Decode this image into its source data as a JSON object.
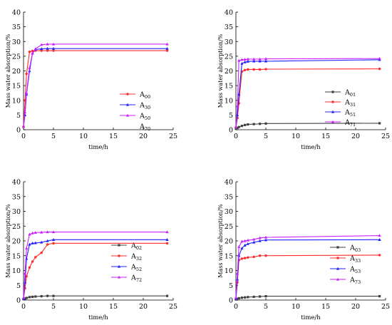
{
  "chart_data": [
    {
      "type": "line",
      "xlabel": "time/h",
      "ylabel": "Mass water absorption/%",
      "xlim": [
        0,
        25
      ],
      "ylim": [
        0,
        40
      ],
      "xticks": [
        "0",
        "5",
        "10",
        "15",
        "20",
        "25"
      ],
      "yticks": [
        "0",
        "5",
        "10",
        "15",
        "20",
        "25",
        "30",
        "35",
        "40"
      ],
      "legend_position": "right",
      "series": [
        {
          "name": "A00",
          "label_main": "A",
          "label_sub": "00",
          "color": "#ff2a2a",
          "marker": "circle",
          "x": [
            0,
            0.25,
            0.5,
            1,
            1.5,
            2,
            3,
            4,
            5,
            24
          ],
          "y": [
            1.0,
            10.0,
            19.0,
            26.5,
            26.8,
            26.9,
            26.9,
            26.9,
            26.9,
            26.9
          ]
        },
        {
          "name": "A30",
          "label_main": "A",
          "label_sub": "30",
          "color": "#2020ff",
          "marker": "triangle",
          "x": [
            0,
            0.25,
            0.5,
            1,
            1.5,
            2,
            3,
            4,
            5,
            24
          ],
          "y": [
            1.0,
            5.0,
            12.0,
            20.0,
            26.0,
            27.3,
            27.5,
            27.6,
            27.6,
            27.6
          ]
        },
        {
          "name": "A50",
          "label_main": "A",
          "label_sub": "50",
          "color": "#cc22ff",
          "marker": "triangle",
          "x": [
            0,
            0.25,
            0.5,
            1,
            1.5,
            2,
            3,
            4,
            5,
            24
          ],
          "y": [
            1.0,
            6.0,
            12.5,
            21.0,
            26.0,
            27.5,
            28.9,
            29.1,
            29.1,
            29.1
          ]
        },
        {
          "name": "A70",
          "label_main": "A",
          "label_sub": "70",
          "color": "#cc22ff",
          "marker": "none",
          "x": [],
          "y": []
        }
      ]
    },
    {
      "type": "line",
      "xlabel": "time/h",
      "ylabel": "Mass water absorption/%",
      "xlim": [
        0,
        25
      ],
      "ylim": [
        0,
        40
      ],
      "xticks": [
        "0",
        "5",
        "10",
        "15",
        "20",
        "25"
      ],
      "yticks": [
        "0",
        "5",
        "10",
        "15",
        "20",
        "25",
        "30",
        "35",
        "40"
      ],
      "legend_position": "right",
      "series": [
        {
          "name": "A01",
          "label_main": "A",
          "label_sub": "01",
          "color": "#404040",
          "marker": "square",
          "x": [
            0,
            0.25,
            0.5,
            1,
            1.5,
            2,
            3,
            4,
            5,
            24
          ],
          "y": [
            0.3,
            0.6,
            0.9,
            1.3,
            1.6,
            1.8,
            1.9,
            2.0,
            2.1,
            2.2
          ]
        },
        {
          "name": "A31",
          "label_main": "A",
          "label_sub": "31",
          "color": "#ff2a2a",
          "marker": "circle",
          "x": [
            0,
            0.25,
            0.5,
            1,
            1.5,
            2,
            3,
            4,
            5,
            24
          ],
          "y": [
            0.8,
            4.0,
            9.0,
            19.8,
            20.3,
            20.5,
            20.5,
            20.5,
            20.6,
            20.7
          ]
        },
        {
          "name": "A51",
          "label_main": "A",
          "label_sub": "51",
          "color": "#2020ff",
          "marker": "triangle",
          "x": [
            0,
            0.25,
            0.5,
            1,
            1.5,
            2,
            3,
            4,
            5,
            24
          ],
          "y": [
            0.8,
            5.0,
            12.0,
            22.5,
            23.0,
            23.2,
            23.3,
            23.3,
            23.3,
            23.8
          ]
        },
        {
          "name": "A71",
          "label_main": "A",
          "label_sub": "71",
          "color": "#cc22ff",
          "marker": "triangle",
          "x": [
            0,
            0.25,
            0.5,
            1,
            1.5,
            2,
            3,
            4,
            5,
            24
          ],
          "y": [
            0.8,
            8.0,
            23.5,
            23.8,
            23.9,
            24.0,
            24.0,
            24.0,
            24.1,
            24.2
          ]
        }
      ]
    },
    {
      "type": "line",
      "xlabel": "time/h",
      "ylabel": "Mass water absorption/%",
      "xlim": [
        0,
        25
      ],
      "ylim": [
        0,
        40
      ],
      "xticks": [
        "0",
        "5",
        "10",
        "15",
        "20",
        "25"
      ],
      "yticks": [
        "0",
        "5",
        "10",
        "15",
        "20",
        "25",
        "30",
        "35",
        "40"
      ],
      "legend_position": "right",
      "series": [
        {
          "name": "A02",
          "label_main": "A",
          "label_sub": "02",
          "color": "#404040",
          "marker": "square",
          "x": [
            0,
            0.25,
            0.5,
            1,
            1.5,
            2,
            3,
            4,
            5,
            24
          ],
          "y": [
            0.3,
            0.5,
            0.7,
            1.0,
            1.1,
            1.2,
            1.3,
            1.4,
            1.4,
            1.4
          ]
        },
        {
          "name": "A32",
          "label_main": "A",
          "label_sub": "32",
          "color": "#ff2a2a",
          "marker": "circle",
          "x": [
            0,
            0.25,
            0.5,
            1,
            1.5,
            2,
            3,
            4,
            5,
            24
          ],
          "y": [
            0.5,
            4.0,
            8.0,
            11.0,
            13.0,
            14.5,
            16.0,
            18.8,
            19.2,
            19.2
          ]
        },
        {
          "name": "A52",
          "label_main": "A",
          "label_sub": "52",
          "color": "#2020ff",
          "marker": "triangle",
          "x": [
            0,
            0.25,
            0.5,
            1,
            1.5,
            2,
            3,
            4,
            5,
            24
          ],
          "y": [
            0.5,
            6.0,
            14.0,
            18.8,
            19.2,
            19.3,
            19.5,
            20.0,
            20.4,
            20.4
          ]
        },
        {
          "name": "A72",
          "label_main": "A",
          "label_sub": "72",
          "color": "#cc22ff",
          "marker": "triangle",
          "x": [
            0,
            0.25,
            0.5,
            1,
            1.5,
            2,
            3,
            4,
            5,
            24
          ],
          "y": [
            0.8,
            9.0,
            17.5,
            22.2,
            22.6,
            22.8,
            22.9,
            23.0,
            23.0,
            23.0
          ]
        }
      ]
    },
    {
      "type": "line",
      "xlabel": "time/h",
      "ylabel": "Mass water absorption/%",
      "xlim": [
        0,
        25
      ],
      "ylim": [
        0,
        40
      ],
      "xticks": [
        "0",
        "5",
        "10",
        "15",
        "20",
        "25"
      ],
      "yticks": [
        "0",
        "5",
        "10",
        "15",
        "20",
        "25",
        "30",
        "35",
        "40"
      ],
      "legend_position": "right",
      "series": [
        {
          "name": "A03",
          "label_main": "A",
          "label_sub": "03",
          "color": "#404040",
          "marker": "square",
          "x": [
            0,
            0.25,
            0.5,
            1,
            1.5,
            2,
            3,
            4,
            5,
            24
          ],
          "y": [
            0.2,
            0.4,
            0.6,
            0.8,
            0.9,
            1.0,
            1.1,
            1.2,
            1.3,
            1.3
          ]
        },
        {
          "name": "A33",
          "label_main": "A",
          "label_sub": "33",
          "color": "#ff2a2a",
          "marker": "circle",
          "x": [
            0,
            0.25,
            0.5,
            1,
            1.5,
            2,
            3,
            4,
            5,
            24
          ],
          "y": [
            0.5,
            6.0,
            13.5,
            14.0,
            14.2,
            14.4,
            14.6,
            15.0,
            15.0,
            15.2
          ]
        },
        {
          "name": "A53",
          "label_main": "A",
          "label_sub": "53",
          "color": "#2020ff",
          "marker": "triangle",
          "x": [
            0,
            0.25,
            0.5,
            1,
            1.5,
            2,
            3,
            4,
            5,
            24
          ],
          "y": [
            0.5,
            7.0,
            15.0,
            17.5,
            18.5,
            19.0,
            19.5,
            20.0,
            20.3,
            20.4
          ]
        },
        {
          "name": "A73",
          "label_main": "A",
          "label_sub": "73",
          "color": "#cc22ff",
          "marker": "triangle",
          "x": [
            0,
            0.25,
            0.5,
            1,
            1.5,
            2,
            3,
            4,
            5,
            24
          ],
          "y": [
            0.8,
            9.0,
            18.0,
            19.8,
            20.0,
            20.2,
            20.5,
            21.0,
            21.2,
            21.8
          ]
        }
      ]
    }
  ]
}
